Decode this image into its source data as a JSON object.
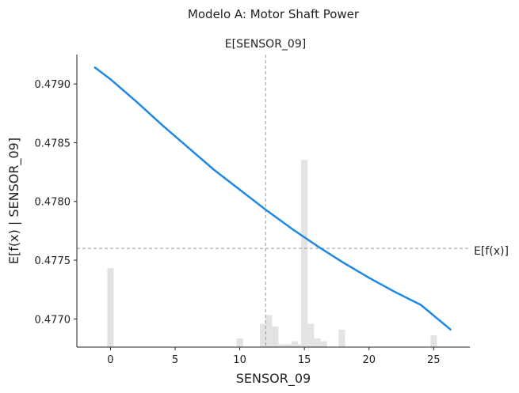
{
  "chart_data": {
    "type": "line",
    "title": "Modelo A: Motor Shaft Power",
    "xlabel": "SENSOR_09",
    "ylabel": "E[f(x) | SENSOR_09]",
    "xlim": [
      -2.6,
      27.8
    ],
    "ylim": [
      0.47676,
      0.47925
    ],
    "xticks": [
      0,
      5,
      10,
      15,
      20,
      25
    ],
    "yticks": [
      0.477,
      0.4775,
      0.478,
      0.4785,
      0.479
    ],
    "ytick_labels": [
      "0.4770",
      "0.4775",
      "0.4780",
      "0.4785",
      "0.4790"
    ],
    "series": [
      {
        "x": [
          -1.2,
          0,
          2,
          4,
          6,
          8,
          10,
          12,
          14,
          16,
          18,
          20,
          22,
          24,
          26.3
        ],
        "y": [
          0.47914,
          0.47904,
          0.47885,
          0.47865,
          0.47846,
          0.47827,
          0.4781,
          0.47793,
          0.47777,
          0.47762,
          0.47748,
          0.47735,
          0.47723,
          0.47712,
          0.47691
        ],
        "color": "#1e88e5"
      }
    ],
    "reference_lines": {
      "vertical": {
        "x": 12.0,
        "label": "E[SENSOR_09]"
      },
      "horizontal": {
        "y": 0.4776,
        "label": "E[f(x)]"
      }
    },
    "histogram": {
      "color": "#e3e3e3",
      "bars": [
        {
          "x": 0,
          "h": 0.27
        },
        {
          "x": 10,
          "h": 0.03
        },
        {
          "x": 11.8,
          "h": 0.08
        },
        {
          "x": 12.25,
          "h": 0.11
        },
        {
          "x": 12.75,
          "h": 0.07
        },
        {
          "x": 13.25,
          "h": 0.01
        },
        {
          "x": 13.75,
          "h": 0.01
        },
        {
          "x": 14.25,
          "h": 0.02
        },
        {
          "x": 14.75,
          "h": 0.01
        },
        {
          "x": 15,
          "h": 0.64
        },
        {
          "x": 15.5,
          "h": 0.08
        },
        {
          "x": 16,
          "h": 0.03
        },
        {
          "x": 16.5,
          "h": 0.02
        },
        {
          "x": 17.9,
          "h": 0.06
        },
        {
          "x": 25,
          "h": 0.04
        }
      ]
    }
  }
}
